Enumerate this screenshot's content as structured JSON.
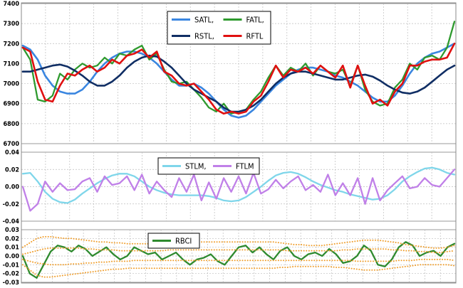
{
  "chart_data": [
    {
      "type": "line",
      "ylim": [
        6700,
        7400
      ],
      "y_ticks": [
        "6700",
        "6800",
        "6900",
        "7000",
        "7100",
        "7200",
        "7300",
        "7400"
      ],
      "grid": true,
      "legend_position": "top-center",
      "series": [
        {
          "name": "SATL,",
          "color": "#3a86e0",
          "values": [
            7190,
            7170,
            7120,
            7040,
            6990,
            6960,
            6950,
            6950,
            6970,
            7010,
            7060,
            7100,
            7130,
            7150,
            7160,
            7160,
            7150,
            7130,
            7100,
            7060,
            7020,
            6990,
            6990,
            7000,
            6980,
            6950,
            6910,
            6870,
            6840,
            6830,
            6840,
            6870,
            6910,
            6950,
            6990,
            7020,
            7050,
            7070,
            7080,
            7080,
            7070,
            7060,
            7040,
            7030,
            7010,
            6990,
            6960,
            6930,
            6910,
            6910,
            6940,
            6990,
            7050,
            7100,
            7130,
            7150,
            7160,
            7180,
            7200
          ]
        },
        {
          "name": "FATL,",
          "color": "#2e9a2e",
          "values": [
            7180,
            7120,
            6920,
            6910,
            6940,
            7050,
            7020,
            7070,
            7100,
            7080,
            7090,
            7130,
            7100,
            7150,
            7140,
            7170,
            7190,
            7120,
            7150,
            7070,
            7010,
            7000,
            7010,
            6970,
            6930,
            6880,
            6860,
            6900,
            6850,
            6860,
            6870,
            6920,
            6960,
            7030,
            7090,
            7040,
            7080,
            7060,
            7100,
            7040,
            7090,
            7060,
            7050,
            7070,
            6990,
            7090,
            6970,
            6910,
            6890,
            6900,
            6980,
            7020,
            7100,
            7070,
            7130,
            7140,
            7120,
            7180,
            7310
          ]
        },
        {
          "name": "RSTL,",
          "color": "#102e64",
          "values": [
            7060,
            7060,
            7070,
            7080,
            7090,
            7095,
            7085,
            7065,
            7040,
            7010,
            6990,
            6990,
            7010,
            7040,
            7080,
            7110,
            7130,
            7140,
            7135,
            7110,
            7080,
            7040,
            7000,
            6970,
            6950,
            6930,
            6910,
            6880,
            6860,
            6860,
            6870,
            6890,
            6920,
            6960,
            7000,
            7030,
            7050,
            7060,
            7060,
            7050,
            7040,
            7030,
            7020,
            7020,
            7030,
            7040,
            7045,
            7035,
            7015,
            6990,
            6970,
            6955,
            6950,
            6960,
            6980,
            7010,
            7040,
            7070,
            7090
          ]
        },
        {
          "name": "RFTL",
          "color": "#e01010",
          "values": [
            7180,
            7160,
            7010,
            6920,
            6910,
            6990,
            7050,
            7040,
            7070,
            7090,
            7060,
            7080,
            7120,
            7100,
            7140,
            7150,
            7170,
            7130,
            7160,
            7060,
            7040,
            7000,
            6990,
            7000,
            6960,
            6920,
            6870,
            6850,
            6860,
            6850,
            6860,
            6910,
            6940,
            7010,
            7090,
            7030,
            7070,
            7060,
            7080,
            7050,
            7090,
            7060,
            7030,
            7090,
            6980,
            7090,
            6990,
            6900,
            6920,
            6890,
            6960,
            7000,
            7090,
            7090,
            7110,
            7120,
            7120,
            7130,
            7200
          ]
        }
      ]
    },
    {
      "type": "line",
      "ylim": [
        -0.04,
        0.04
      ],
      "y_ticks": [
        "-0.04",
        "-0.02",
        "0.00",
        "0.02",
        "0.04"
      ],
      "grid": true,
      "legend_position": "top-center",
      "series": [
        {
          "name": "STLM,",
          "color": "#7fd6ea",
          "values": [
            0.015,
            0.016,
            0.006,
            -0.006,
            -0.014,
            -0.018,
            -0.019,
            -0.015,
            -0.008,
            -0.002,
            0.004,
            0.009,
            0.013,
            0.015,
            0.015,
            0.012,
            0.006,
            0.0,
            -0.004,
            -0.007,
            -0.009,
            -0.01,
            -0.01,
            -0.01,
            -0.01,
            -0.011,
            -0.013,
            -0.016,
            -0.017,
            -0.016,
            -0.012,
            -0.006,
            0.0,
            0.007,
            0.013,
            0.016,
            0.017,
            0.015,
            0.011,
            0.006,
            0.002,
            -0.001,
            -0.004,
            -0.006,
            -0.009,
            -0.011,
            -0.013,
            -0.015,
            -0.014,
            -0.01,
            -0.003,
            0.006,
            0.012,
            0.017,
            0.021,
            0.022,
            0.02,
            0.016,
            0.014
          ]
        },
        {
          "name": "FTLM",
          "color": "#c080e8",
          "values": [
            0.0,
            -0.028,
            -0.02,
            0.006,
            -0.006,
            0.004,
            -0.004,
            -0.003,
            0.006,
            0.01,
            -0.006,
            0.012,
            0.002,
            0.004,
            0.012,
            -0.004,
            0.014,
            -0.008,
            0.006,
            -0.004,
            -0.012,
            0.01,
            -0.006,
            0.014,
            -0.016,
            0.005,
            -0.014,
            0.01,
            -0.006,
            0.012,
            -0.008,
            0.016,
            -0.008,
            -0.003,
            0.008,
            -0.002,
            0.006,
            0.012,
            -0.004,
            0.002,
            -0.006,
            0.014,
            -0.01,
            0.004,
            -0.01,
            0.01,
            -0.02,
            0.01,
            -0.016,
            -0.004,
            0.004,
            0.012,
            -0.002,
            0.0,
            0.01,
            0.002,
            0.0,
            0.01,
            0.02
          ]
        }
      ]
    },
    {
      "type": "line",
      "ylim": [
        -0.03,
        0.03
      ],
      "y_ticks": [
        "-0.03",
        "-0.02",
        "-0.01",
        "0.00",
        "0.01",
        "0.02",
        "0.03"
      ],
      "grid": true,
      "legend_position": "top-left",
      "series": [
        {
          "name": "RBCI",
          "color": "#2e8a2e",
          "values": [
            0.0,
            -0.02,
            -0.025,
            -0.01,
            0.005,
            0.012,
            0.01,
            0.005,
            0.012,
            0.008,
            0.0,
            0.005,
            0.01,
            0.002,
            -0.004,
            0.0,
            0.01,
            0.006,
            0.002,
            0.004,
            -0.004,
            0.0,
            0.004,
            -0.004,
            -0.01,
            -0.004,
            -0.002,
            0.002,
            -0.006,
            -0.01,
            0.0,
            0.01,
            0.012,
            0.004,
            0.01,
            0.002,
            -0.004,
            0.006,
            0.01,
            0.0,
            -0.004,
            0.002,
            0.004,
            0.0,
            0.008,
            0.002,
            -0.008,
            -0.006,
            0.0,
            0.012,
            0.006,
            -0.01,
            -0.012,
            -0.004,
            0.01,
            0.016,
            0.012,
            0.0,
            0.004,
            0.006,
            0.0,
            0.01,
            0.014
          ]
        },
        {
          "name": "",
          "color": "#f0a030",
          "dotted": true,
          "values": [
            0.01,
            0.015,
            0.02,
            0.022,
            0.022,
            0.021,
            0.02,
            0.02,
            0.019,
            0.018,
            0.017,
            0.016,
            0.016,
            0.015,
            0.015,
            0.014,
            0.014,
            0.014,
            0.014,
            0.015,
            0.015,
            0.016,
            0.016,
            0.016,
            0.016,
            0.016,
            0.016,
            0.016,
            0.016,
            0.016,
            0.016,
            0.016,
            0.016,
            0.016,
            0.016,
            0.016,
            0.016,
            0.015,
            0.014,
            0.013,
            0.013,
            0.012,
            0.012,
            0.012,
            0.013,
            0.014,
            0.015,
            0.016,
            0.017,
            0.018,
            0.018,
            0.018,
            0.017,
            0.016,
            0.015,
            0.013,
            0.012,
            0.011,
            0.01,
            0.009,
            0.009,
            0.01,
            0.012
          ]
        },
        {
          "name": "",
          "color": "#f0a030",
          "dotted": true,
          "values": [
            0.002,
            0.004,
            0.006,
            0.008,
            0.009,
            0.009,
            0.009,
            0.009,
            0.009,
            0.008,
            0.008,
            0.007,
            0.007,
            0.007,
            0.006,
            0.006,
            0.006,
            0.006,
            0.006,
            0.006,
            0.006,
            0.007,
            0.007,
            0.007,
            0.007,
            0.007,
            0.007,
            0.007,
            0.007,
            0.007,
            0.007,
            0.007,
            0.007,
            0.007,
            0.007,
            0.007,
            0.007,
            0.007,
            0.006,
            0.006,
            0.006,
            0.006,
            0.006,
            0.006,
            0.006,
            0.006,
            0.007,
            0.007,
            0.008,
            0.008,
            0.008,
            0.008,
            0.008,
            0.007,
            0.007,
            0.006,
            0.006,
            0.005,
            0.005,
            0.004,
            0.004,
            0.005,
            0.006
          ]
        },
        {
          "name": "",
          "color": "#f0a030",
          "dotted": true,
          "values": [
            -0.004,
            -0.006,
            -0.008,
            -0.009,
            -0.01,
            -0.01,
            -0.01,
            -0.009,
            -0.009,
            -0.008,
            -0.008,
            -0.007,
            -0.007,
            -0.006,
            -0.006,
            -0.006,
            -0.005,
            -0.005,
            -0.005,
            -0.005,
            -0.005,
            -0.005,
            -0.005,
            -0.005,
            -0.005,
            -0.005,
            -0.005,
            -0.005,
            -0.005,
            -0.005,
            -0.005,
            -0.005,
            -0.005,
            -0.005,
            -0.005,
            -0.005,
            -0.005,
            -0.005,
            -0.005,
            -0.005,
            -0.005,
            -0.005,
            -0.005,
            -0.005,
            -0.005,
            -0.005,
            -0.005,
            -0.005,
            -0.006,
            -0.006,
            -0.006,
            -0.006,
            -0.006,
            -0.006,
            -0.005,
            -0.005,
            -0.005,
            -0.004,
            -0.004,
            -0.004,
            -0.004,
            -0.004,
            -0.005
          ]
        },
        {
          "name": "",
          "color": "#f0a030",
          "dotted": true,
          "values": [
            -0.01,
            -0.016,
            -0.022,
            -0.024,
            -0.024,
            -0.023,
            -0.022,
            -0.021,
            -0.02,
            -0.019,
            -0.018,
            -0.017,
            -0.016,
            -0.015,
            -0.015,
            -0.014,
            -0.014,
            -0.014,
            -0.014,
            -0.014,
            -0.014,
            -0.014,
            -0.014,
            -0.014,
            -0.014,
            -0.014,
            -0.014,
            -0.014,
            -0.014,
            -0.014,
            -0.014,
            -0.014,
            -0.014,
            -0.014,
            -0.014,
            -0.014,
            -0.014,
            -0.013,
            -0.013,
            -0.012,
            -0.012,
            -0.012,
            -0.012,
            -0.012,
            -0.012,
            -0.013,
            -0.013,
            -0.014,
            -0.015,
            -0.016,
            -0.016,
            -0.016,
            -0.015,
            -0.014,
            -0.013,
            -0.012,
            -0.011,
            -0.01,
            -0.01,
            -0.01,
            -0.01,
            -0.01,
            -0.011
          ]
        }
      ]
    }
  ]
}
